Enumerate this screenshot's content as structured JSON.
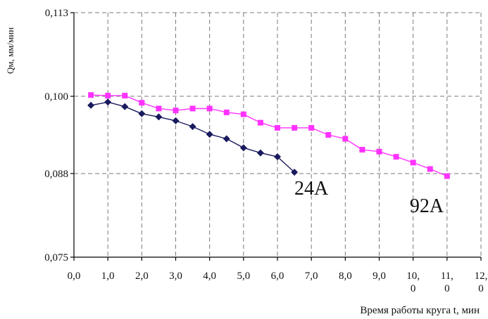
{
  "chart_data": {
    "type": "line",
    "ylabel": "Qм, мм/мин",
    "xlabel": "Время работы круга t, мин",
    "xlim": [
      0,
      12
    ],
    "ylim": [
      0.075,
      0.113
    ],
    "grid": true,
    "x_ticks": [
      {
        "value": 0.0,
        "lines": [
          "0,0"
        ]
      },
      {
        "value": 1.0,
        "lines": [
          "1,0"
        ]
      },
      {
        "value": 2.0,
        "lines": [
          "2,0"
        ]
      },
      {
        "value": 3.0,
        "lines": [
          "3,0"
        ]
      },
      {
        "value": 4.0,
        "lines": [
          "4,0"
        ]
      },
      {
        "value": 5.0,
        "lines": [
          "5,0"
        ]
      },
      {
        "value": 6.0,
        "lines": [
          "6,0"
        ]
      },
      {
        "value": 7.0,
        "lines": [
          "7,0"
        ]
      },
      {
        "value": 8.0,
        "lines": [
          "8,0"
        ]
      },
      {
        "value": 9.0,
        "lines": [
          "9,0"
        ]
      },
      {
        "value": 10.0,
        "lines": [
          "10,",
          "0"
        ]
      },
      {
        "value": 11.0,
        "lines": [
          "11,",
          "0"
        ]
      },
      {
        "value": 12.0,
        "lines": [
          "12,",
          "0"
        ]
      }
    ],
    "y_ticks": [
      {
        "value": 0.075,
        "label": "0,075"
      },
      {
        "value": 0.088,
        "label": "0,088"
      },
      {
        "value": 0.1,
        "label": "0,100"
      },
      {
        "value": 0.113,
        "label": "0,113"
      }
    ],
    "series": [
      {
        "name": "24A",
        "color": "#1a1a5e",
        "marker": "diamond",
        "x": [
          0.5,
          1.0,
          1.5,
          2.0,
          2.5,
          3.0,
          3.5,
          4.0,
          4.5,
          5.0,
          5.5,
          6.0,
          6.5
        ],
        "y": [
          0.0986,
          0.0991,
          0.0984,
          0.0973,
          0.0968,
          0.0962,
          0.0953,
          0.0941,
          0.0934,
          0.092,
          0.0912,
          0.0906,
          0.0882
        ]
      },
      {
        "name": "92A",
        "color": "#ff33ff",
        "marker": "square",
        "x": [
          0.5,
          1.0,
          1.5,
          2.0,
          2.5,
          3.0,
          3.5,
          4.0,
          4.5,
          5.0,
          5.5,
          6.0,
          6.5,
          7.0,
          7.5,
          8.0,
          8.5,
          9.0,
          9.5,
          10.0,
          10.5,
          11.0
        ],
        "y": [
          0.1002,
          0.1001,
          0.1001,
          0.099,
          0.0981,
          0.0978,
          0.0981,
          0.0981,
          0.0975,
          0.0972,
          0.0959,
          0.0951,
          0.0951,
          0.0951,
          0.094,
          0.0934,
          0.0917,
          0.0914,
          0.0906,
          0.0897,
          0.0887,
          0.0876
        ]
      }
    ],
    "annotations": [
      {
        "text": "24A",
        "x": 7.0,
        "y": 0.0847
      },
      {
        "text": "92A",
        "x": 10.4,
        "y": 0.082
      }
    ]
  }
}
